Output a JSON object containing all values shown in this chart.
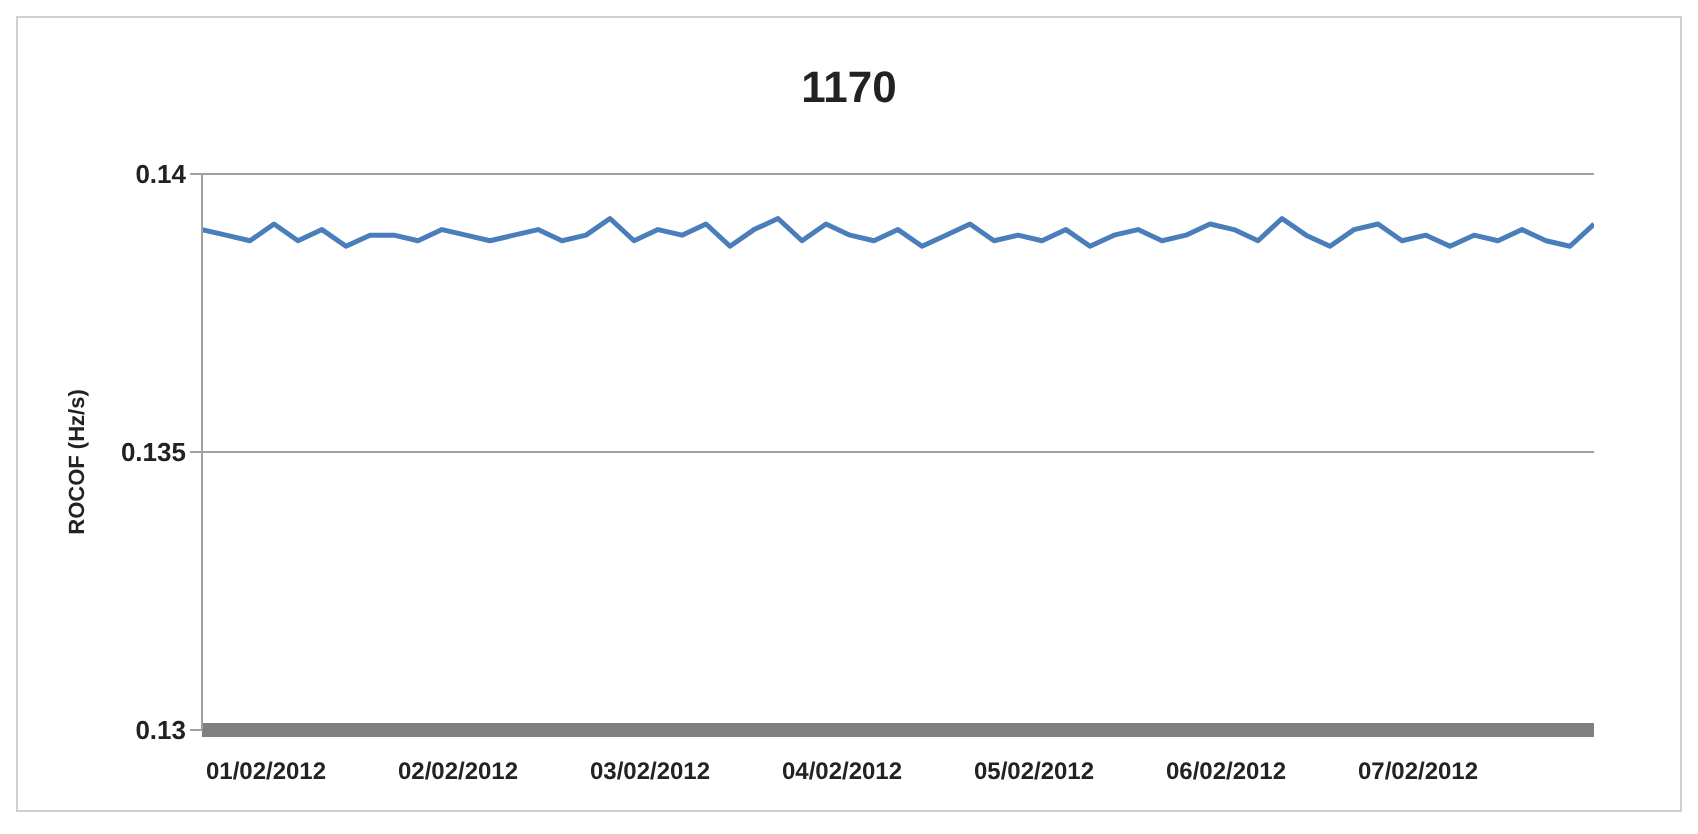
{
  "chart_data": {
    "type": "line",
    "title": "1170",
    "ylabel": "ROCOF (Hz/s)",
    "x": [
      "2012-01-31T16:00",
      "2012-01-31T19:00",
      "2012-01-31T22:00",
      "2012-02-01T01:00",
      "2012-02-01T04:00",
      "2012-02-01T07:00",
      "2012-02-01T10:00",
      "2012-02-01T13:00",
      "2012-02-01T16:00",
      "2012-02-01T19:00",
      "2012-02-01T22:00",
      "2012-02-02T01:00",
      "2012-02-02T04:00",
      "2012-02-02T07:00",
      "2012-02-02T10:00",
      "2012-02-02T13:00",
      "2012-02-02T16:00",
      "2012-02-02T19:00",
      "2012-02-02T22:00",
      "2012-02-03T01:00",
      "2012-02-03T04:00",
      "2012-02-03T07:00",
      "2012-02-03T10:00",
      "2012-02-03T13:00",
      "2012-02-03T16:00",
      "2012-02-03T19:00",
      "2012-02-03T22:00",
      "2012-02-04T01:00",
      "2012-02-04T04:00",
      "2012-02-04T07:00",
      "2012-02-04T10:00",
      "2012-02-04T13:00",
      "2012-02-04T16:00",
      "2012-02-04T19:00",
      "2012-02-04T22:00",
      "2012-02-05T01:00",
      "2012-02-05T04:00",
      "2012-02-05T07:00",
      "2012-02-05T10:00",
      "2012-02-05T13:00",
      "2012-02-05T16:00",
      "2012-02-05T19:00",
      "2012-02-05T22:00",
      "2012-02-06T01:00",
      "2012-02-06T04:00",
      "2012-02-06T07:00",
      "2012-02-06T10:00",
      "2012-02-06T13:00",
      "2012-02-06T16:00",
      "2012-02-06T19:00",
      "2012-02-06T22:00",
      "2012-02-07T01:00",
      "2012-02-07T04:00",
      "2012-02-07T07:00",
      "2012-02-07T10:00",
      "2012-02-07T13:00",
      "2012-02-07T16:00",
      "2012-02-07T19:00",
      "2012-02-07T22:00"
    ],
    "series": [
      {
        "color": "#4a7ebb",
        "values": [
          0.139,
          0.1389,
          0.1388,
          0.1391,
          0.1388,
          0.139,
          0.1387,
          0.1389,
          0.1389,
          0.1388,
          0.139,
          0.1389,
          0.1388,
          0.1389,
          0.139,
          0.1388,
          0.1389,
          0.1392,
          0.1388,
          0.139,
          0.1389,
          0.1391,
          0.1387,
          0.139,
          0.1392,
          0.1388,
          0.1391,
          0.1389,
          0.1388,
          0.139,
          0.1387,
          0.1389,
          0.1391,
          0.1388,
          0.1389,
          0.1388,
          0.139,
          0.1387,
          0.1389,
          0.139,
          0.1388,
          0.1389,
          0.1391,
          0.139,
          0.1388,
          0.1392,
          0.1389,
          0.1387,
          0.139,
          0.1391,
          0.1388,
          0.1389,
          0.1387,
          0.1389,
          0.1388,
          0.139,
          0.1388,
          0.1387,
          0.1391
        ]
      }
    ],
    "xlim": [
      "2012-01-31T16:00",
      "2012-02-07T22:00"
    ],
    "xticks": [
      {
        "value": "2012-02-01",
        "label": "01/02/2012"
      },
      {
        "value": "2012-02-02",
        "label": "02/02/2012"
      },
      {
        "value": "2012-02-03",
        "label": "03/02/2012"
      },
      {
        "value": "2012-02-04",
        "label": "04/02/2012"
      },
      {
        "value": "2012-02-05",
        "label": "05/02/2012"
      },
      {
        "value": "2012-02-06",
        "label": "06/02/2012"
      },
      {
        "value": "2012-02-07",
        "label": "07/02/2012"
      }
    ],
    "ylim": [
      0.13,
      0.14
    ],
    "yticks": [
      0.13,
      0.135,
      0.14
    ],
    "grid": "y",
    "legend": false,
    "marker": "none",
    "line_style": "solid"
  }
}
